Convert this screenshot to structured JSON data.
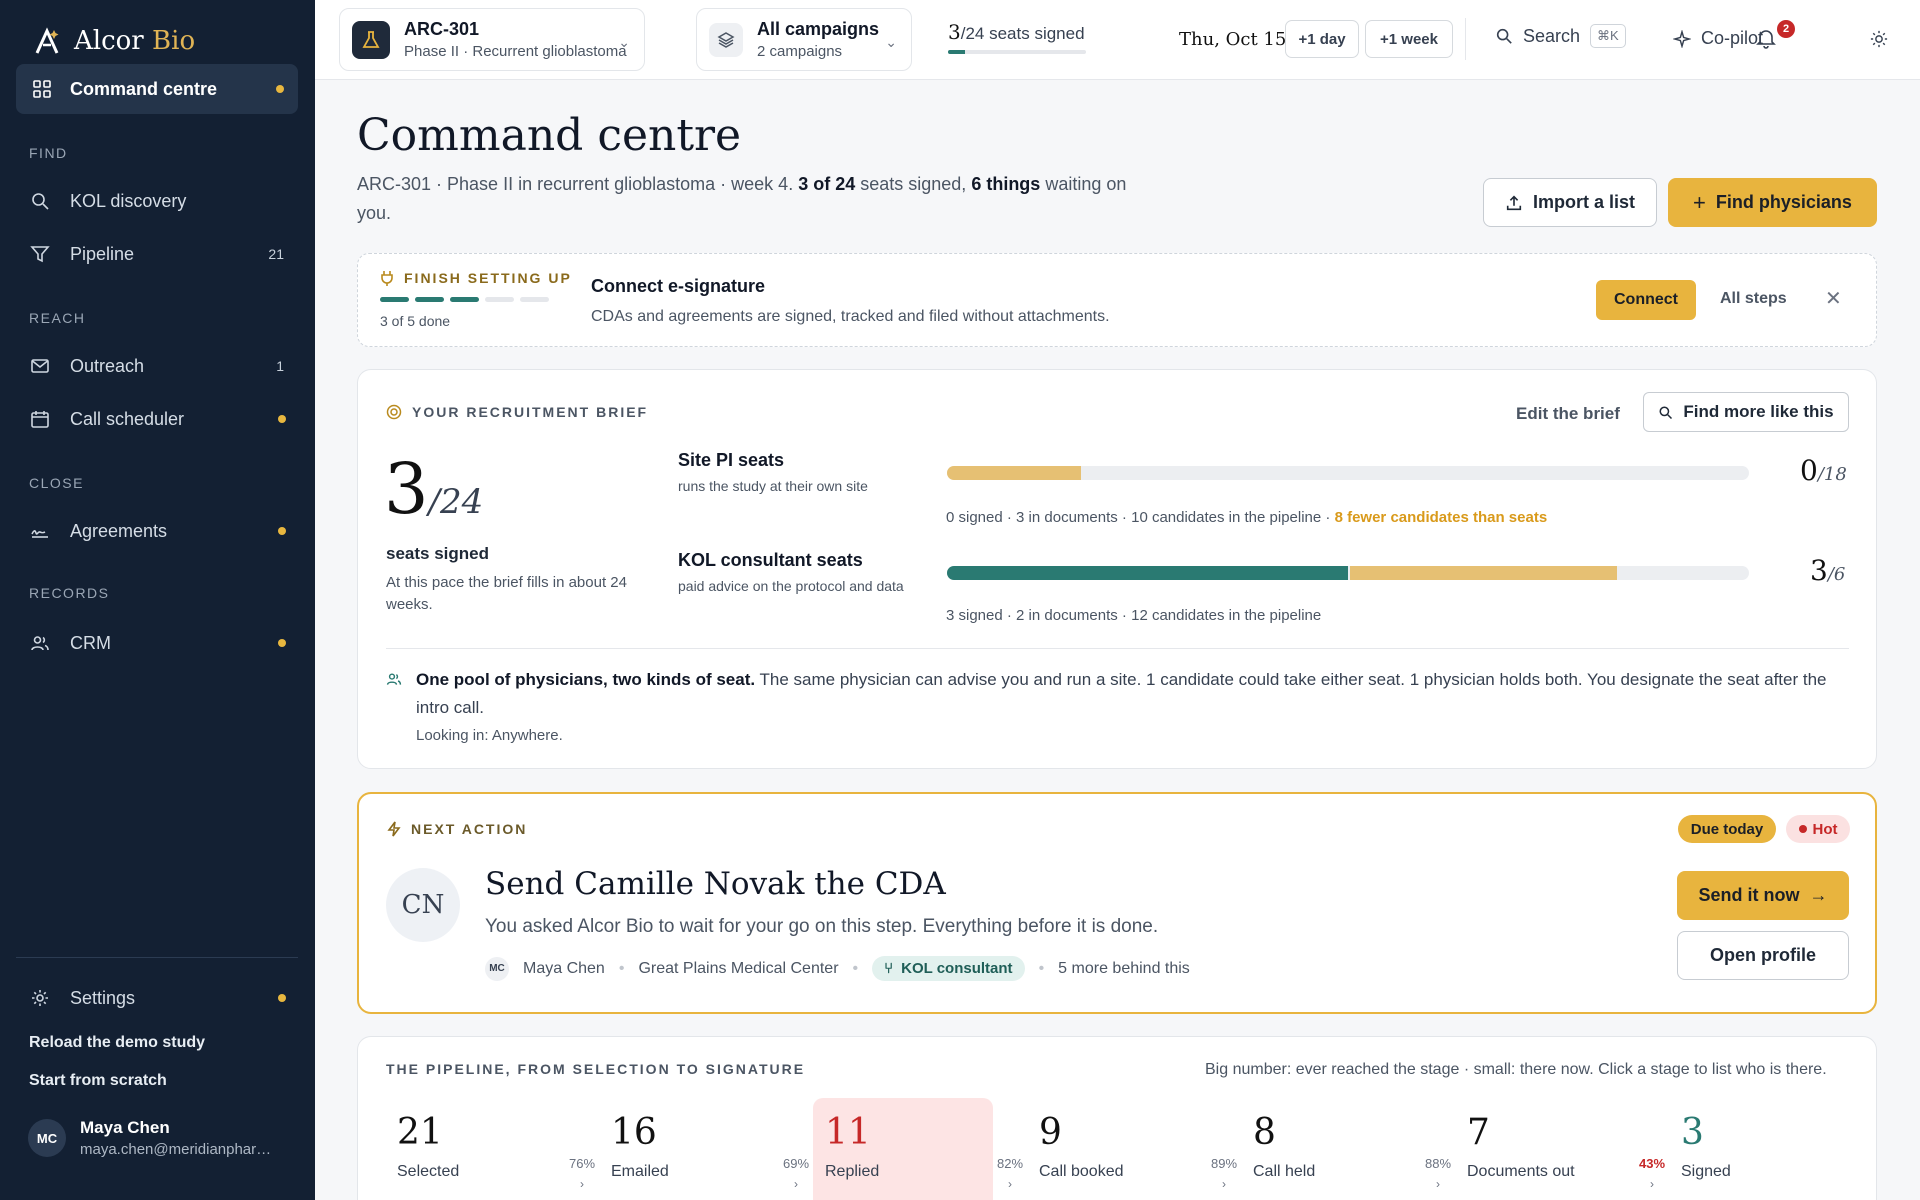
{
  "sidebar": {
    "brand": {
      "name": "Alcor",
      "suffix": "Bio"
    },
    "active": {
      "label": "Command centre"
    },
    "sections": {
      "find": "FIND",
      "reach": "REACH",
      "close": "CLOSE",
      "records": "RECORDS"
    },
    "items": {
      "kol": {
        "label": "KOL discovery"
      },
      "pipeline": {
        "label": "Pipeline",
        "count": "21"
      },
      "outreach": {
        "label": "Outreach",
        "count": "1"
      },
      "scheduler": {
        "label": "Call scheduler"
      },
      "agreements": {
        "label": "Agreements"
      },
      "crm": {
        "label": "CRM"
      },
      "settings": {
        "label": "Settings"
      }
    },
    "links": {
      "reload": "Reload the demo study",
      "scratch": "Start from scratch"
    },
    "user": {
      "initials": "MC",
      "name": "Maya Chen",
      "email": "maya.chen@meridianphar…"
    }
  },
  "topbar": {
    "study": {
      "title": "ARC-301",
      "subtitle": "Phase II · Recurrent glioblastoma"
    },
    "campaigns": {
      "title": "All campaigns",
      "subtitle": "2 campaigns"
    },
    "seats": {
      "signed": "3",
      "rest": "/24 seats signed",
      "progress": 0.125
    },
    "date": "Thu, Oct 15",
    "plus_day": "+1 day",
    "plus_week": "+1 week",
    "search": "Search",
    "shortcut": "⌘K",
    "copilot": "Co-pilot",
    "notifications": "2"
  },
  "page": {
    "title": "Command centre",
    "sub_a": "ARC-301 · Phase II in recurrent glioblastoma · week 4. ",
    "sub_b": "3 of 24",
    "sub_c": " seats signed, ",
    "sub_d": "6 things",
    "sub_e": " waiting on you.",
    "import": "Import a list",
    "find": "Find physicians"
  },
  "setup": {
    "label": "FINISH SETTING UP",
    "steps_done": 3,
    "steps_total": 5,
    "progress": "3 of 5 done",
    "title": "Connect e-signature",
    "desc": "CDAs and agreements are signed, tracked and filed without attachments.",
    "connect": "Connect",
    "all_steps": "All steps"
  },
  "brief": {
    "label": "YOUR RECRUITMENT BRIEF",
    "edit": "Edit the brief",
    "find_more": "Find more like this",
    "signed": "3",
    "total": "/24",
    "signed_label": "seats signed",
    "pace": "At this pace the brief fills in about 24 weeks.",
    "site": {
      "title": "Site PI seats",
      "desc": "runs the study at their own site",
      "signed": 0,
      "docs": 3,
      "seats": 18,
      "num": "0",
      "den": "/18",
      "stats": "0 signed · 3 in documents · 10 candidates in the pipeline · ",
      "warn": "8 fewer candidates than seats"
    },
    "kol": {
      "title": "KOL consultant seats",
      "desc": "paid advice on the protocol and data",
      "signed": 3,
      "docs": 2,
      "seats": 6,
      "num": "3",
      "den": "/6",
      "stats": "3 signed · 2 in documents · 12 candidates in the pipeline"
    },
    "note_bold": "One pool of physicians, two kinds of seat.",
    "note_text": " The same physician can advise you and run a site. 1 candidate could take either seat. 1 physician holds both. You designate the seat after the intro call.",
    "looking": "Looking in: Anywhere.",
    "colors": {
      "signed": "#2a7a72",
      "docs": "#e6c073"
    }
  },
  "next": {
    "label": "NEXT ACTION",
    "due": "Due today",
    "hot": "Hot",
    "initials": "CN",
    "title": "Send Camille Novak the CDA",
    "desc": "You asked Alcor Bio to wait for your go on this step. Everything before it is done.",
    "owner_initials": "MC",
    "owner": "Maya Chen",
    "site": "Great Plains Medical Center",
    "role": "KOL consultant",
    "more": "5 more behind this",
    "send": "Send it now",
    "open": "Open profile"
  },
  "pipeline": {
    "label": "THE PIPELINE, FROM SELECTION TO SIGNATURE",
    "hint": "Big number: ever reached the stage · small: there now. Click a stage to list who is there.",
    "stages": [
      {
        "count": "21",
        "name": "Selected"
      },
      {
        "count": "16",
        "name": "Emailed"
      },
      {
        "count": "11",
        "name": "Replied"
      },
      {
        "count": "9",
        "name": "Call booked"
      },
      {
        "count": "8",
        "name": "Call held"
      },
      {
        "count": "7",
        "name": "Documents out"
      },
      {
        "count": "3",
        "name": "Signed"
      }
    ],
    "conversions": [
      "76%",
      "69%",
      "82%",
      "89%",
      "88%",
      "43%"
    ]
  }
}
